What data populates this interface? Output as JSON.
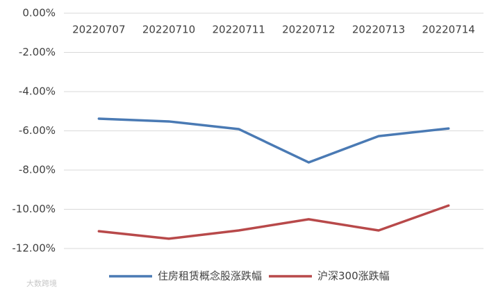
{
  "chart_data": {
    "type": "line",
    "categories": [
      "20220707",
      "20220710",
      "20220711",
      "20220712",
      "20220713",
      "20220714"
    ],
    "series": [
      {
        "name": "住房租赁概念股涨跌幅",
        "color": "#4a7ab4",
        "values": [
          -5.38,
          -5.52,
          -5.91,
          -7.61,
          -6.27,
          -5.88
        ]
      },
      {
        "name": "沪深300涨跌幅",
        "color": "#b8494a",
        "values": [
          -11.12,
          -11.5,
          -11.08,
          -10.51,
          -11.08,
          -9.81
        ]
      }
    ],
    "ylim": [
      -12,
      0
    ],
    "yticks": [
      {
        "value": 0,
        "label": "0.00%"
      },
      {
        "value": -2,
        "label": "-2.00%"
      },
      {
        "value": -4,
        "label": "-4.00%"
      },
      {
        "value": -6,
        "label": "-6.00%"
      },
      {
        "value": -8,
        "label": "-8.00%"
      },
      {
        "value": -10,
        "label": "-10.00%"
      },
      {
        "value": -12,
        "label": "-12.00%"
      }
    ],
    "grid": true,
    "legend": "bottom",
    "watermark": "大数跨境"
  }
}
